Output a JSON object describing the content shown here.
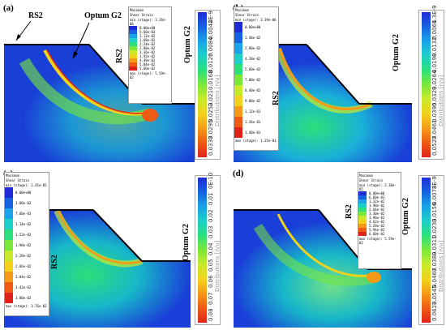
{
  "panels": [
    {
      "label": "(a)",
      "rs2_top_label": "RS2",
      "optum_top_label": "Optum G2",
      "rs2_side_label": "RS2",
      "optum_side_label": "Optum G2",
      "rs2_legend": {
        "title1": "Maximum",
        "title2": "Shear Strain",
        "min": "min (stage): 3.26e-06",
        "max": "max (stage): 5.59e-02",
        "values": [
          "0.00e+00",
          "5.60e-03",
          "1.12e-02",
          "1.68e-02",
          "2.24e-02",
          "2.80e-02",
          "3.36e-02",
          "3.92e-02",
          "4.48e-02",
          "5.04e-02",
          "5.60e-02"
        ]
      },
      "optum_legend": {
        "ticks": [
          "4E-9",
          "0.0042",
          "0.0084",
          "0.0126",
          "0.0168",
          "0.021",
          "0.0252",
          "0.0295",
          "0.0337"
        ],
        "dist": "Distributions [n/u]"
      }
    },
    {
      "label": "(b)",
      "optum_side_label": "Optum G2",
      "rs2_side_label": "RS2",
      "rs2_legend": {
        "title1": "Maximum",
        "title2": "Shear Strain",
        "min": "min (stage): 3.39e-06",
        "max": "max (stage): 1.35e-01",
        "values": [
          "0.00e+00",
          "1.40e-02",
          "2.80e-02",
          "4.20e-02",
          "5.60e-02",
          "7.00e-02",
          "8.40e-02",
          "9.80e-02",
          "1.12e-01",
          "1.26e-01",
          "1.40e-01"
        ]
      },
      "optum_legend": {
        "ticks": [
          "1.3E-9",
          "0.0066",
          "0.0132",
          "0.0198",
          "0.0264",
          "0.0329",
          "0.0395",
          "0.0461",
          "0.0527"
        ],
        "dist": "Distributions [n/u]"
      }
    },
    {
      "label": "(c)",
      "rs2_side_label": "RS2",
      "optum_side_label": "Optum G2",
      "rs2_legend": {
        "title1": "Maximum",
        "title2": "Shear Strain",
        "min": "min (stage): 1.45e-05",
        "max": "max (stage): 3.76e-02",
        "values": [
          "0.00e+00",
          "3.80e-03",
          "7.60e-03",
          "1.14e-02",
          "1.52e-02",
          "1.90e-02",
          "2.28e-02",
          "2.66e-02",
          "3.04e-02",
          "3.42e-02",
          "3.80e-02"
        ]
      },
      "optum_legend": {
        "ticks": [
          "0E-10",
          "0.01",
          "0.02",
          "0.03",
          "0.04",
          "0.05",
          "0.06",
          "0.07",
          "0.08"
        ],
        "dist": "Distributions [n/u]"
      }
    },
    {
      "label": "(d)",
      "rs2_side_label": "RS2",
      "optum_side_label": "Optum G2",
      "rs2_legend": {
        "title1": "Maximum",
        "title2": "Shear Strain",
        "min": "min (stage): 2.30e-05",
        "max": "max (stage): 5.59e-02",
        "values": [
          "0.00e+00",
          "6.60e-03",
          "1.32e-02",
          "1.98e-02",
          "2.64e-02",
          "3.30e-02",
          "3.96e-02",
          "4.62e-02",
          "5.28e-02",
          "5.94e-02",
          "6.60e-02"
        ]
      },
      "optum_legend": {
        "ticks": [
          "3E-9",
          "0.0078",
          "0.0156",
          "0.0233",
          "0.0311",
          "0.0389",
          "0.0467",
          "0.0545",
          "0.0623"
        ],
        "dist": "Distributions [n/u]"
      }
    }
  ],
  "colors": {
    "ramp": [
      "#1f2bd6",
      "#1563e0",
      "#1aa3e8",
      "#1ccfc8",
      "#2be07a",
      "#7ae83a",
      "#c9ea2a",
      "#f2d21c",
      "#f59a18",
      "#ef5a14",
      "#e0231a"
    ],
    "soil_base": "#1a3fd8",
    "soil_mid": "#17b7c9",
    "soil_light": "#30d9a8"
  }
}
